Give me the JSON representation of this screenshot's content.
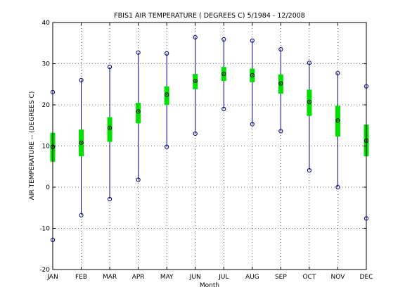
{
  "chart_data": {
    "type": "box",
    "title": "FBIS1  AIR TEMPERATURE ( DEGREES C) 5/1984 - 12/2008",
    "xlabel": "Month",
    "ylabel": "AIR TEMPERATURE -- (DEGREES C)",
    "ylim": [
      -20,
      40
    ],
    "yticks": [
      "-20",
      "-10",
      "0",
      "10",
      "20",
      "30",
      "40"
    ],
    "categories": [
      "JAN",
      "FEB",
      "MAR",
      "APR",
      "MAY",
      "JUN",
      "JUL",
      "AUG",
      "SEP",
      "OCT",
      "NOV",
      "DEC"
    ],
    "grid": true,
    "series": [
      {
        "min": [
          -12.8,
          -6.8,
          -2.9,
          1.8,
          9.8,
          13.0,
          19.0,
          15.3,
          13.6,
          4.1,
          0.0,
          -7.6
        ],
        "q1": [
          6.2,
          7.5,
          11.0,
          15.5,
          20.0,
          23.8,
          25.8,
          25.5,
          22.7,
          17.3,
          12.3,
          7.5
        ],
        "median": [
          9.8,
          10.8,
          14.4,
          18.4,
          22.5,
          25.8,
          27.5,
          27.2,
          25.2,
          20.7,
          16.2,
          11.3
        ],
        "q3": [
          13.2,
          14.0,
          17.0,
          20.5,
          24.5,
          27.5,
          29.2,
          28.8,
          27.4,
          23.7,
          19.8,
          15.2
        ],
        "max": [
          23.1,
          26.0,
          29.2,
          32.7,
          32.5,
          36.4,
          35.9,
          35.6,
          33.5,
          30.2,
          27.7,
          24.5
        ]
      }
    ],
    "colors": {
      "whisker": "#00008b",
      "box": "#00e000",
      "marker": "#000080",
      "frame": "#000000",
      "grid": "#000000"
    }
  }
}
